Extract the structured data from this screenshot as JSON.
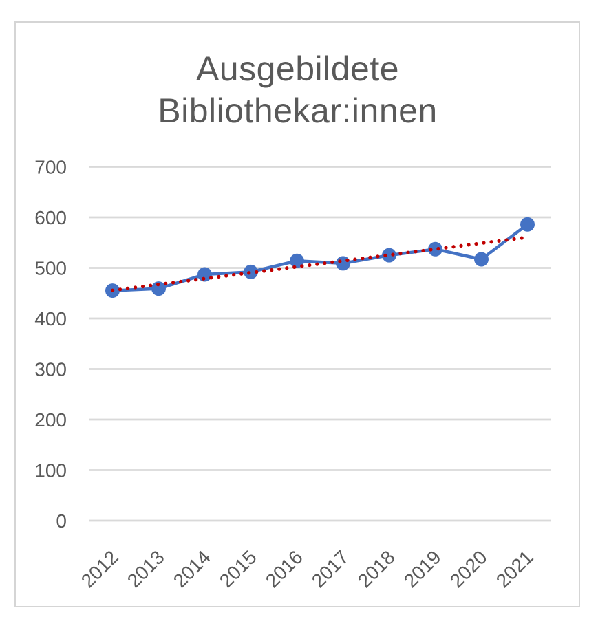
{
  "window": {
    "background_color": "#ffffff",
    "frame_border_color": "#d5d5d5"
  },
  "chart_data": {
    "type": "line",
    "title": "Ausgebildete Bibliothekar:innen",
    "title_lines": [
      "Ausgebildete",
      "Bibliothekar:innen"
    ],
    "categories": [
      "2012",
      "2013",
      "2014",
      "2015",
      "2016",
      "2017",
      "2018",
      "2019",
      "2020",
      "2021"
    ],
    "series": [
      {
        "name": "Ausgebildete Bibliothekar:innen",
        "values": [
          455,
          459,
          487,
          492,
          514,
          509,
          525,
          537,
          517,
          586
        ],
        "color": "#4472c4",
        "marker": "circle"
      }
    ],
    "trendline": {
      "type": "linear",
      "style": "dotted",
      "color": "#c00000",
      "start_value": 455.5,
      "end_value": 560.5
    },
    "xlabel": "",
    "ylabel": "",
    "yticks": [
      0,
      100,
      200,
      300,
      400,
      500,
      600,
      700
    ],
    "ylim": [
      0,
      700
    ],
    "grid": true,
    "legend": "none",
    "x_label_rotation": -45,
    "text_color": "#595959",
    "gridline_color": "#d9d9d9"
  }
}
